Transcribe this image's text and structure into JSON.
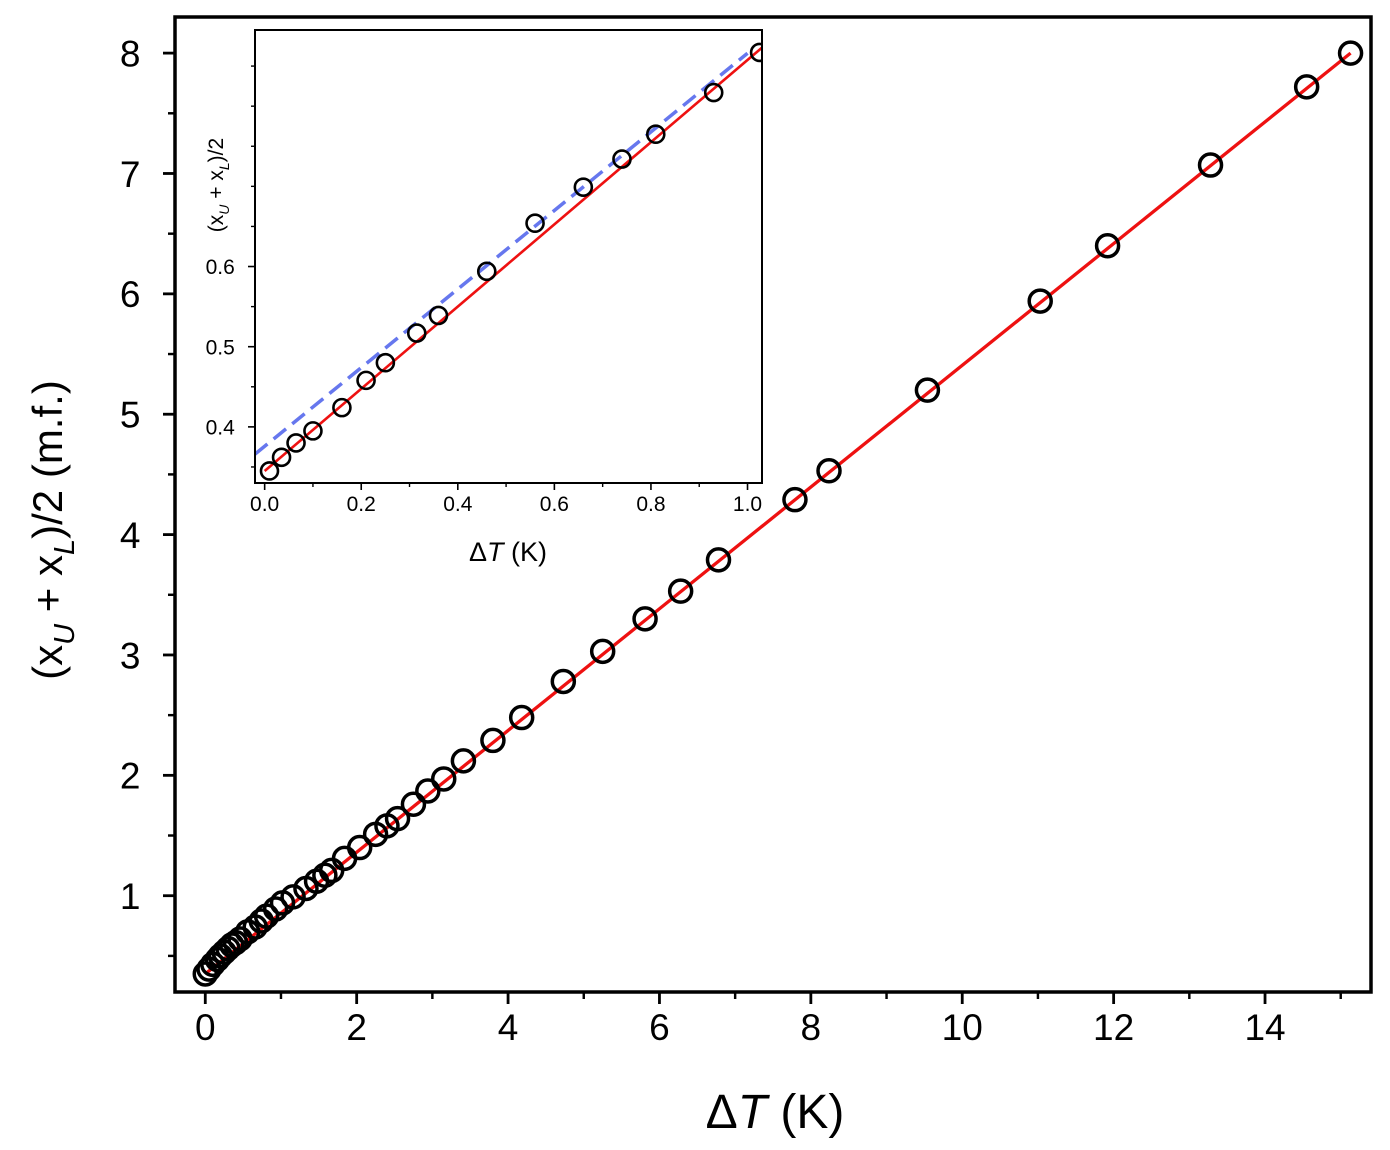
{
  "chart_data": [
    {
      "id": "main",
      "type": "scatter",
      "xlabel": "ΔT  (K)",
      "xlabel_delta": "Δ",
      "xlabel_var": "T",
      "xlabel_unit": "  (K)",
      "ylabel": "(x_U + x_L)/2  (m.f.)",
      "ylabel_parts": {
        "open": "(x",
        "sub_u": "U",
        "plus": " + x",
        "sub_l": "L",
        "close": ")/2  (m.f.)"
      },
      "xlim": [
        -0.4,
        15.4
      ],
      "ylim": [
        0.2,
        8.3
      ],
      "xticks": [
        0,
        2,
        4,
        6,
        8,
        10,
        12,
        14
      ],
      "xtick_labels": [
        "0",
        "2",
        "4",
        "6",
        "8",
        "10",
        "12",
        "14"
      ],
      "yticks": [
        1,
        2,
        3,
        4,
        5,
        6,
        7,
        8
      ],
      "ytick_labels": [
        "1",
        "2",
        "3",
        "4",
        "5",
        "6",
        "7",
        "8"
      ],
      "series": [
        {
          "name": "data",
          "style": "open-circle",
          "color": "#000000",
          "x": [
            0.0,
            0.05,
            0.1,
            0.16,
            0.2,
            0.25,
            0.3,
            0.35,
            0.4,
            0.46,
            0.56,
            0.66,
            0.74,
            0.81,
            0.93,
            1.02,
            1.16,
            1.33,
            1.47,
            1.58,
            1.67,
            1.84,
            2.04,
            2.25,
            2.4,
            2.54,
            2.75,
            2.94,
            3.15,
            3.41,
            3.8,
            4.18,
            4.73,
            5.25,
            5.81,
            6.28,
            6.78,
            7.79,
            8.24,
            9.54,
            11.03,
            11.92,
            13.28,
            14.55,
            15.13
          ],
          "y": [
            0.35,
            0.39,
            0.43,
            0.47,
            0.5,
            0.53,
            0.56,
            0.59,
            0.61,
            0.64,
            0.7,
            0.74,
            0.79,
            0.83,
            0.89,
            0.94,
            0.99,
            1.06,
            1.12,
            1.17,
            1.21,
            1.31,
            1.4,
            1.51,
            1.58,
            1.64,
            1.76,
            1.87,
            1.97,
            2.12,
            2.29,
            2.48,
            2.78,
            3.03,
            3.3,
            3.53,
            3.79,
            4.29,
            4.53,
            5.2,
            5.94,
            6.4,
            7.07,
            7.72,
            8.0
          ]
        },
        {
          "name": "fit",
          "style": "line",
          "color": "#ee1111",
          "x": [
            0.0,
            15.13
          ],
          "y": [
            0.35,
            8.0
          ]
        }
      ]
    },
    {
      "id": "inset",
      "type": "scatter",
      "xlabel": "ΔT  (K)",
      "xlabel_delta": "Δ",
      "xlabel_var": "T",
      "xlabel_unit": "  (K)",
      "ylabel": "(x_U + x_L)/2",
      "ylabel_parts": {
        "open": "(x",
        "sub_u": "U",
        "plus": " + x",
        "sub_l": "L",
        "close": ")/2"
      },
      "xlim": [
        -0.02,
        1.03
      ],
      "ylim": [
        0.33,
        0.895
      ],
      "xticks": [
        0.0,
        0.2,
        0.4,
        0.6,
        0.8,
        1.0
      ],
      "xtick_labels": [
        "0.0",
        "0.2",
        "0.4",
        "0.6",
        "0.8",
        "1.0"
      ],
      "yticks": [
        0.4,
        0.5,
        0.6
      ],
      "ytick_labels": [
        "0.4",
        "0.5",
        "0.6"
      ],
      "series": [
        {
          "name": "data",
          "style": "open-circle",
          "color": "#000000",
          "x": [
            0.01,
            0.035,
            0.065,
            0.1,
            0.16,
            0.21,
            0.25,
            0.315,
            0.36,
            0.46,
            0.56,
            0.66,
            0.74,
            0.81,
            0.93,
            1.025
          ],
          "y": [
            0.345,
            0.362,
            0.38,
            0.395,
            0.424,
            0.458,
            0.48,
            0.517,
            0.539,
            0.594,
            0.654,
            0.699,
            0.734,
            0.765,
            0.817,
            0.867
          ]
        },
        {
          "name": "fit",
          "style": "line",
          "color": "#ee1111",
          "x": [
            0.0,
            1.03
          ],
          "y": [
            0.345,
            0.873
          ]
        },
        {
          "name": "linear",
          "style": "dashed",
          "color": "#6677ee",
          "x": [
            -0.02,
            1.0
          ],
          "y": [
            0.366,
            0.866
          ]
        }
      ]
    }
  ]
}
